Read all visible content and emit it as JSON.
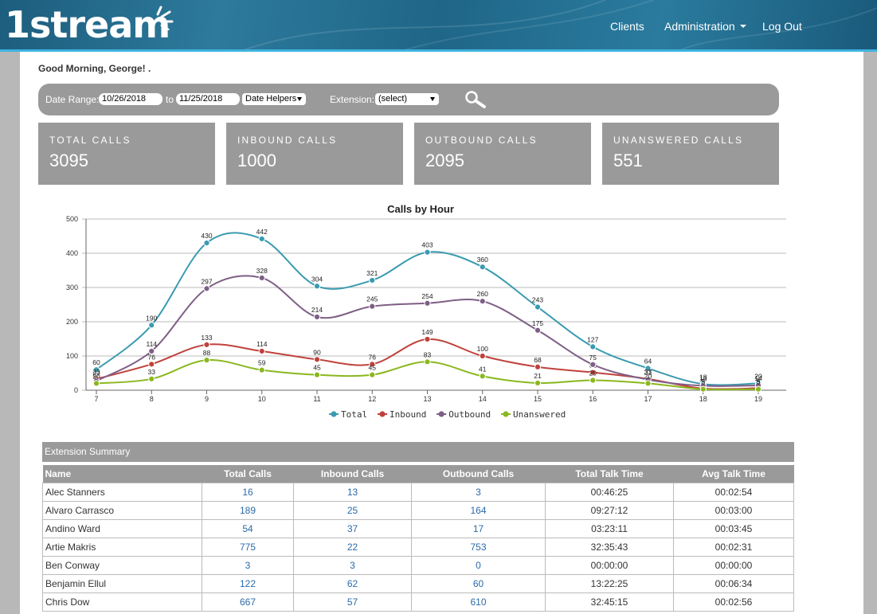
{
  "header": {
    "logo_text": "1stream",
    "nav": {
      "clients": "Clients",
      "administration": "Administration",
      "logout": "Log Out"
    }
  },
  "greeting": "Good Morning, George!  .",
  "filters": {
    "date_range_label": "Date Range:",
    "start_date": "10/26/2018",
    "to_label": "to",
    "end_date": "11/25/2018",
    "date_helpers": "Date Helpers",
    "extension_label": "Extension:",
    "extension_value": "(select)"
  },
  "stats": [
    {
      "label": "TOTAL CALLS",
      "value": "3095"
    },
    {
      "label": "INBOUND CALLS",
      "value": "1000"
    },
    {
      "label": "OUTBOUND CALLS",
      "value": "2095"
    },
    {
      "label": "UNANSWERED CALLS",
      "value": "551"
    }
  ],
  "chart_data": {
    "type": "line",
    "title": "Calls by Hour",
    "x": [
      7,
      8,
      9,
      10,
      11,
      12,
      13,
      14,
      15,
      16,
      17,
      18,
      19
    ],
    "ylim": [
      0,
      500
    ],
    "yticks": [
      0,
      100,
      200,
      300,
      400,
      500
    ],
    "grid": true,
    "legend_position": "bottom",
    "series": [
      {
        "name": "Total",
        "color": "#3a9bb0",
        "values": [
          60,
          190,
          430,
          442,
          304,
          321,
          403,
          360,
          243,
          127,
          64,
          18,
          20
        ]
      },
      {
        "name": "Inbound",
        "color": "#c0423c",
        "values": [
          33,
          76,
          133,
          114,
          90,
          76,
          149,
          100,
          68,
          52,
          33,
          5,
          6
        ]
      },
      {
        "name": "Outbound",
        "color": "#7e5f86",
        "values": [
          27,
          114,
          297,
          328,
          214,
          245,
          254,
          260,
          175,
          75,
          31,
          13,
          14
        ]
      },
      {
        "name": "Unanswered",
        "color": "#8ab81e",
        "values": [
          20,
          33,
          88,
          59,
          45,
          45,
          83,
          41,
          21,
          29,
          20,
          3,
          3
        ]
      }
    ]
  },
  "table": {
    "title": "Extension Summary",
    "columns": [
      "Name",
      "Total Calls",
      "Inbound Calls",
      "Outbound Calls",
      "Total Talk Time",
      "Avg Talk Time"
    ],
    "rows": [
      [
        "Alec Stanners",
        "16",
        "13",
        "3",
        "00:46:25",
        "00:02:54"
      ],
      [
        "Alvaro Carrasco",
        "189",
        "25",
        "164",
        "09:27:12",
        "00:03:00"
      ],
      [
        "Andino Ward",
        "54",
        "37",
        "17",
        "03:23:11",
        "00:03:45"
      ],
      [
        "Artie Makris",
        "775",
        "22",
        "753",
        "32:35:43",
        "00:02:31"
      ],
      [
        "Ben Conway",
        "3",
        "3",
        "0",
        "00:00:00",
        "00:00:00"
      ],
      [
        "Benjamin Ellul",
        "122",
        "62",
        "60",
        "13:22:25",
        "00:06:34"
      ],
      [
        "Chris Dow",
        "667",
        "57",
        "610",
        "32:45:15",
        "00:02:56"
      ]
    ]
  }
}
